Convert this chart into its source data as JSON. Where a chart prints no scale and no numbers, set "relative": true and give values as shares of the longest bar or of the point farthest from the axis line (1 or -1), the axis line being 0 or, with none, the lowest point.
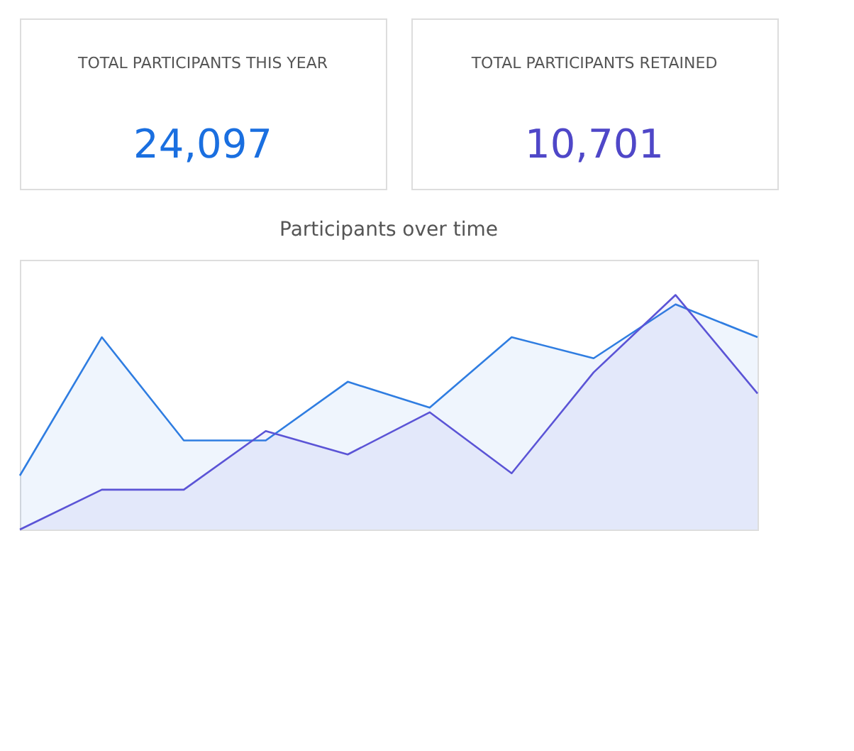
{
  "chart_data": {
    "type": "area",
    "title": "Participants over time",
    "relative": true,
    "annotations": [
      "TOTAL PARTICIPANTS THIS YEAR",
      "24,097",
      "TOTAL PARTICIPANTS RETAINED",
      "10,701"
    ],
    "categories": [
      null,
      null,
      null,
      null,
      null,
      null,
      null,
      null,
      null,
      null
    ],
    "series": [
      {
        "color": "#2f7de1",
        "values": [
          0.23,
          0.82,
          0.38,
          0.38,
          0.63,
          0.52,
          0.82,
          0.73,
          0.96,
          0.82
        ]
      },
      {
        "color": "#5b54d6",
        "values": [
          0,
          0.17,
          0.17,
          0.42,
          0.32,
          0.5,
          0.24,
          0.67,
          1,
          0.58
        ]
      }
    ]
  }
}
